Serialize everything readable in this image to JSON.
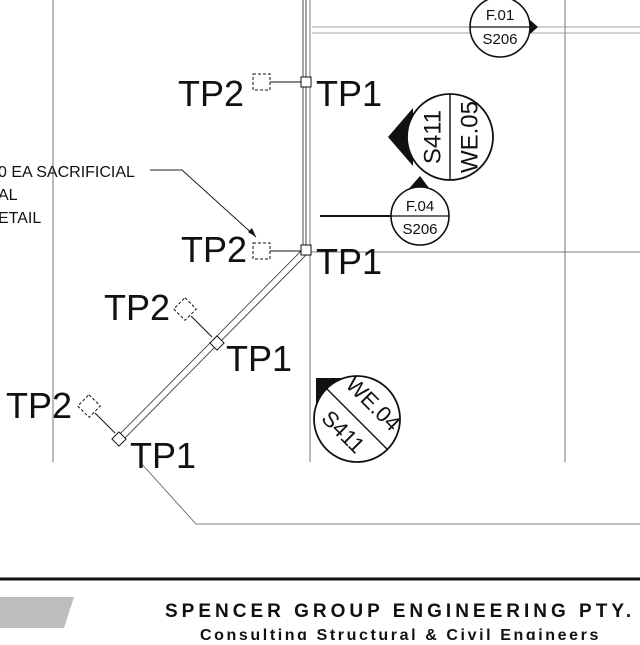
{
  "drawing": {
    "pipe_labels": {
      "tp1": "TP1",
      "tp2": "TP2"
    },
    "callout_note": {
      "line1": "0 EA SACRIFICIAL",
      "line2": "AL",
      "line3": "ETAIL"
    },
    "section_markers": [
      {
        "top": "F.01",
        "bottom": "S206"
      },
      {
        "top": "F.04",
        "bottom": "S206"
      }
    ],
    "elevation_markers": [
      {
        "detail": "S411",
        "ref": "WE.05"
      },
      {
        "detail": "S411",
        "ref": "WE.04"
      }
    ]
  },
  "title_block": {
    "company": "SPENCER GROUP  ENGINEERING PTY.",
    "tagline": "Consulting Structural & Civil Engineers"
  }
}
